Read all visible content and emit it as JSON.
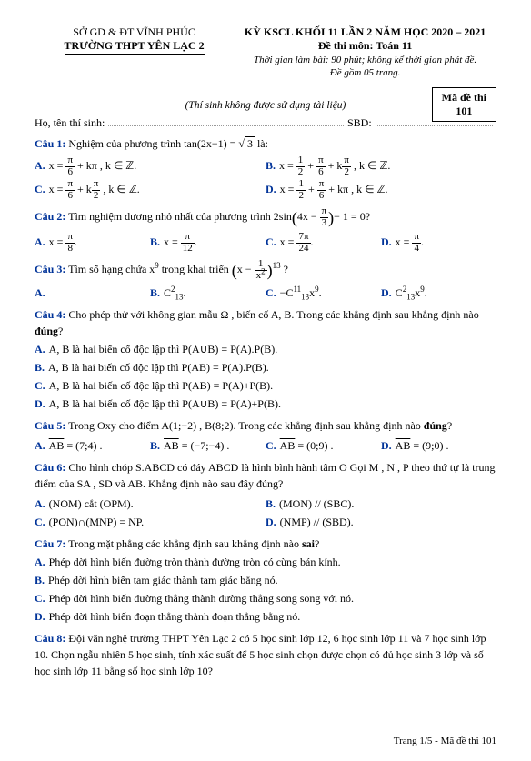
{
  "header": {
    "left1": "SỞ GD & ĐT VĨNH PHÚC",
    "left2": "TRƯỜNG THPT YÊN LẠC 2",
    "right1": "KỲ KSCL KHỐI 11 LẦN 2 NĂM HỌC 2020 – 2021",
    "right2": "Đề thi môn: Toán 11",
    "right3": "Thời gian làm bài: 90 phút; không kể thời gian phát đề.",
    "right4": "Đề gồm 05 trang."
  },
  "code": {
    "label": "Mã đề thi",
    "value": "101"
  },
  "note": "(Thí sinh không được sử dụng tài liệu)",
  "ident": {
    "name": "Họ, tên thí sinh:",
    "sbd": "SBD:"
  },
  "q1": {
    "label": "Câu 1:",
    "text_a": "Nghiệm của phương trình  tan",
    "text_b": "(2x−1) =",
    "text_c": " là:",
    "A_l": "A.",
    "A_pre": "x = ",
    "A_mid": " + kπ , k ∈ ℤ.",
    "B_l": "B.",
    "B_pre": "x = ",
    "B_mid": " + ",
    "B_mid2": " + k",
    "B_end": " , k ∈ ℤ.",
    "C_l": "C.",
    "C_pre": "x = ",
    "C_mid": " + k",
    "C_end": " , k ∈ ℤ.",
    "D_l": "D.",
    "D_pre": "x = ",
    "D_mid": " + ",
    "D_end": " + kπ , k ∈ ℤ."
  },
  "q2": {
    "label": "Câu 2:",
    "text_a": "Tìm nghiệm dương nhỏ nhất của phương trình  2sin",
    "text_b": "4x − ",
    "text_c": "− 1 = 0?",
    "A_l": "A.",
    "A": "x = ",
    "B_l": "B.",
    "B": "x = ",
    "C_l": "C.",
    "C": "x = ",
    "D_l": "D.",
    "D": "x = "
  },
  "q3": {
    "label": "Câu 3:",
    "text_a": "Tìm số hạng chứa  x",
    "text_b": " trong khai triển ",
    "text_c": "x − ",
    "text_d": " ?",
    "A_l": "A.",
    "B_l": "B.",
    "B": "C",
    "b_sup": "2",
    "b_sub": "13",
    "b_dot": ".",
    "C_l": "C.",
    "C_pre": "−C",
    "c_sup": "11",
    "c_sub": "13",
    "c_mid": "x",
    "c_sup2": "9",
    "c_dot": ".",
    "D_l": "D.",
    "D_pre": "C",
    "d_sup": "2",
    "d_sub": "13",
    "d_mid": "x",
    "d_sup2": "9",
    "d_dot": "."
  },
  "q4": {
    "label": "Câu 4:",
    "text": "Cho phép thử với không gian mẫu Ω , biến cố A, B. Trong các khẳng định sau khẳng định nào ",
    "bold": "đúng",
    "q": "?",
    "A_l": "A.",
    "A": "A, B là hai biến cố độc lập  thì  P(A∪B) = P(A).P(B).",
    "B_l": "B.",
    "B": "A, B là hai biến cố độc lập thì  P(AB) = P(A).P(B).",
    "C_l": "C.",
    "C": "A, B là hai biến cố độc lập thì  P(AB) = P(A)+P(B).",
    "D_l": "D.",
    "D": "A, B là hai biến cố độc lập thì  P(A∪B) = P(A)+P(B)."
  },
  "q5": {
    "label": "Câu 5:",
    "text": "Trong Oxy cho điểm  A(1;−2) ,  B(8;2). Trong các khẳng định sau khẳng định nào ",
    "bold": "đúng",
    "q": "?",
    "A_l": "A.",
    "A_pre": "AB",
    "A": " = (7;4) .",
    "B_l": "B.",
    "B_pre": "AB",
    "B": " = (−7;−4) .",
    "C_l": "C.",
    "C_pre": "AB",
    "C": " = (0;9) .",
    "D_l": "D.",
    "D_pre": "AB",
    "D": " = (9;0) ."
  },
  "q6": {
    "label": "Câu 6:",
    "text": "Cho hình chóp S.ABCD có đáy ABCD là hình bình hành tâm O Gọi M , N , P theo thứ tự là trung điểm của SA , SD và AB. Khẳng định nào sau đây đúng?",
    "A_l": "A.",
    "A": "(NOM)  cắt  (OPM).",
    "B_l": "B.",
    "B": "(MON) // (SBC).",
    "C_l": "C.",
    "C": "(PON)∩(MNP) = NP.",
    "D_l": "D.",
    "D": "(NMP) // (SBD)."
  },
  "q7": {
    "label": "Câu 7:",
    "text": "Trong mặt phẳng các khẳng định sau khẳng định nào ",
    "bold": "sai",
    "q": "?",
    "A_l": "A.",
    "A": "Phép dời hình biến đường tròn thành đường tròn có cùng bán kính.",
    "B_l": "B.",
    "B": "Phép dời hình biến tam giác thành tam giác bằng nó.",
    "C_l": "C.",
    "C": "Phép dời hình biến đường thẳng thành đường thẳng song song với nó.",
    "D_l": "D.",
    "D": "Phép dời hình biến đoạn thẳng thành đoạn thẳng bằng nó."
  },
  "q8": {
    "label": "Câu 8:",
    "text": "Đội văn nghệ trường THPT Yên Lạc 2 có 5 học sinh lớp 12, 6 học sinh lớp 11 và 7 học sinh lớp 10. Chọn ngẫu nhiên 5 học sinh, tính xác suất để 5 học sinh chọn  được chọn có đủ học sinh 3 lớp và số học sinh lớp 11 bằng số học sinh lớp 10?"
  },
  "footer": "Trang 1/5 - Mã đề thi 101"
}
